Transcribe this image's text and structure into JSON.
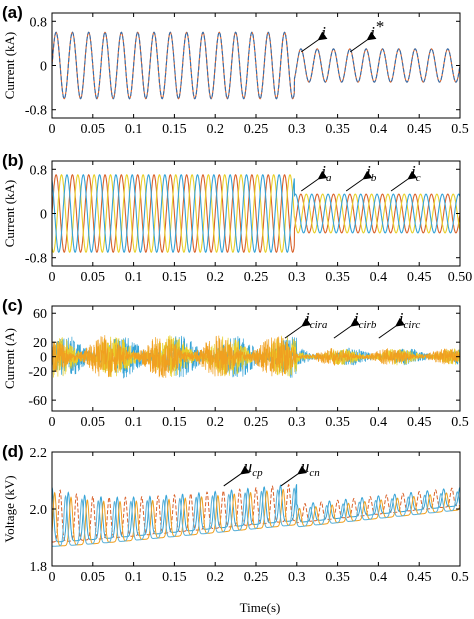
{
  "chart_data": [
    {
      "type": "line",
      "panel_label": "(a)",
      "ylabel": "Current (kA)",
      "xlim": [
        0,
        0.5
      ],
      "ylim": [
        -0.95,
        0.95
      ],
      "x_ticks": [
        "0",
        "0.05",
        "0.1",
        "0.15",
        "0.2",
        "0.25",
        "0.3",
        "0.35",
        "0.4",
        "0.45",
        "0.5"
      ],
      "y_ticks": [
        {
          "value": 0.8,
          "label": "0.8"
        },
        {
          "value": 0,
          "label": "0"
        },
        {
          "value": -0.8,
          "label": "-0.8"
        }
      ],
      "frequency_hz": 50,
      "amplitude_before": 0.6,
      "amplitude_after": 0.3,
      "step_time": 0.297,
      "series": [
        {
          "name": "i",
          "phase_deg": 0,
          "dashed": false,
          "color": "#d9622b"
        },
        {
          "name": "i*",
          "phase_deg": 0,
          "dashed": true,
          "color": "#2f6fb3"
        }
      ],
      "annotations": [
        {
          "main": "i",
          "sub": "",
          "sup": "",
          "x": 0.33,
          "y": 0.5
        },
        {
          "main": "i",
          "sub": "",
          "sup": "*",
          "x": 0.39,
          "y": 0.5
        }
      ]
    },
    {
      "type": "line",
      "panel_label": "(b)",
      "ylabel": "Current (kA)",
      "xlim": [
        0,
        0.5
      ],
      "ylim": [
        -0.95,
        0.95
      ],
      "x_ticks": [
        "0",
        "0.05",
        "0.1",
        "0.15",
        "0.2",
        "0.25",
        "0.3",
        "0.35",
        "0.4",
        "0.45",
        "0.50"
      ],
      "y_ticks": [
        {
          "value": 0.8,
          "label": "0.8"
        },
        {
          "value": 0,
          "label": "0"
        },
        {
          "value": -0.8,
          "label": "-0.8"
        }
      ],
      "frequency_hz": 50,
      "amplitude_before": 0.7,
      "amplitude_after": 0.35,
      "step_time": 0.297,
      "series": [
        {
          "name": "ia",
          "phase_deg": 0,
          "dashed": false,
          "color": "#d9622b"
        },
        {
          "name": "ib",
          "phase_deg": -120,
          "dashed": false,
          "color": "#e8cf2a"
        },
        {
          "name": "ic",
          "phase_deg": 120,
          "dashed": false,
          "color": "#35a3d6"
        }
      ],
      "annotations": [
        {
          "main": "i",
          "sub": "a",
          "sup": "",
          "x": 0.33,
          "y": 0.66
        },
        {
          "main": "i",
          "sub": "b",
          "sup": "",
          "x": 0.385,
          "y": 0.66
        },
        {
          "main": "i",
          "sub": "c",
          "sup": "",
          "x": 0.44,
          "y": 0.66
        }
      ]
    },
    {
      "type": "line",
      "panel_label": "(c)",
      "ylabel": "Current (A)",
      "xlim": [
        0,
        0.5
      ],
      "ylim": [
        -75,
        70
      ],
      "x_ticks": [
        "0",
        "0.05",
        "0.1",
        "0.15",
        "0.2",
        "0.25",
        "0.3",
        "0.35",
        "0.4",
        "0.45",
        "0.5"
      ],
      "y_ticks": [
        {
          "value": 60,
          "label": "60"
        },
        {
          "value": 20,
          "label": "20"
        },
        {
          "value": 0,
          "label": "0"
        },
        {
          "value": -20,
          "label": "-20"
        },
        {
          "value": -60,
          "label": "-60"
        }
      ],
      "noise_amplitude_before": 30,
      "noise_amplitude_after": 12,
      "step_time": 0.3,
      "series": [
        {
          "name": "icira",
          "color": "#35a3d6"
        },
        {
          "name": "icirb",
          "color": "#e8cf2a"
        },
        {
          "name": "icirc",
          "color": "#f0a020"
        }
      ],
      "annotations": [
        {
          "main": "i",
          "sub": "cira",
          "sup": "",
          "x": 0.31,
          "y": 45
        },
        {
          "main": "i",
          "sub": "cirb",
          "sup": "",
          "x": 0.37,
          "y": 45
        },
        {
          "main": "i",
          "sub": "circ",
          "sup": "",
          "x": 0.425,
          "y": 45
        }
      ]
    },
    {
      "type": "line",
      "panel_label": "(d)",
      "ylabel": "Voltage (kV)",
      "xlabel": "Time(s)",
      "xlim": [
        0,
        0.5
      ],
      "ylim": [
        1.8,
        2.2
      ],
      "x_ticks": [
        "0",
        "0.05",
        "0.1",
        "0.15",
        "0.2",
        "0.25",
        "0.3",
        "0.35",
        "0.4",
        "0.45",
        "0.5"
      ],
      "y_ticks": [
        {
          "value": 2.2,
          "label": "2.2"
        },
        {
          "value": 2.0,
          "label": "2.0"
        },
        {
          "value": 1.8,
          "label": "1.8"
        }
      ],
      "frequency_hz": 50,
      "series": [
        {
          "name": "ucp",
          "color": "#d9622b"
        },
        {
          "name": "ucn",
          "color": "#35a3d6"
        }
      ],
      "annotations": [
        {
          "main": "u",
          "sub": "cp",
          "sup": "",
          "x": 0.235,
          "y": 2.13
        },
        {
          "main": "u",
          "sub": "cn",
          "sup": "",
          "x": 0.305,
          "y": 2.13
        }
      ]
    }
  ]
}
